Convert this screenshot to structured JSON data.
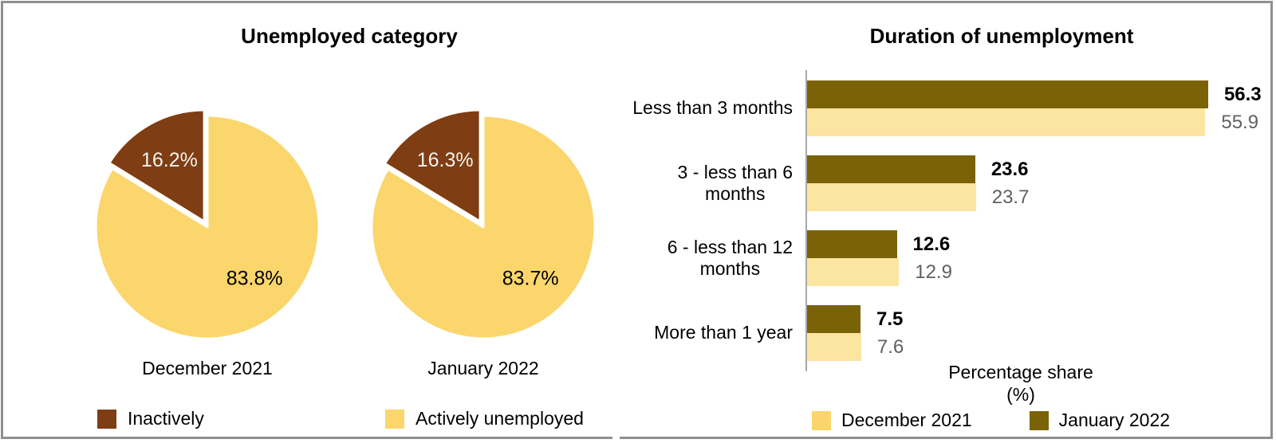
{
  "left_panel": {
    "title": "Unemployed category",
    "legend": [
      {
        "label": "Inactively",
        "color": "#7E3D13"
      },
      {
        "label": "Actively unemployed",
        "color": "#FBD66D"
      }
    ]
  },
  "right_panel": {
    "title": "Duration of unemployment",
    "xlabel_line1": "Percentage share",
    "xlabel_line2": "(%)",
    "legend": [
      {
        "label": "December 2021",
        "color": "#FBD56C"
      },
      {
        "label": "January 2022",
        "color": "#7A6307"
      }
    ]
  },
  "chart_data": [
    {
      "type": "pie",
      "title": "Unemployed category",
      "slice_labels": [
        "Inactively",
        "Actively unemployed"
      ],
      "colors": [
        "#7E3D13",
        "#FBD66D"
      ],
      "pies": [
        {
          "caption": "December 2021",
          "values": [
            16.2,
            83.8
          ],
          "labels": [
            "16.2%",
            "83.8%"
          ]
        },
        {
          "caption": "January 2022",
          "values": [
            16.3,
            83.7
          ],
          "labels": [
            "16.3%",
            "83.7%"
          ]
        }
      ],
      "layout": {
        "explode_first_slice": true,
        "start_angle": "top",
        "legend_position": "bottom"
      }
    },
    {
      "type": "bar",
      "orientation": "horizontal",
      "title": "Duration of unemployment",
      "categories": [
        "Less than 3 months",
        "3 - less than 6\nmonths",
        "6 - less than 12\nmonths",
        "More than 1 year"
      ],
      "series": [
        {
          "name": "December 2021",
          "color": "#FCE4A1",
          "values": [
            55.9,
            23.7,
            12.9,
            7.6
          ]
        },
        {
          "name": "January 2022",
          "color": "#7A6307",
          "values": [
            56.3,
            23.6,
            12.6,
            7.5
          ]
        }
      ],
      "xlabel": "Percentage share (%)",
      "xlim": [
        0,
        60
      ],
      "grid": false,
      "value_labels": true,
      "legend_position": "bottom"
    }
  ]
}
